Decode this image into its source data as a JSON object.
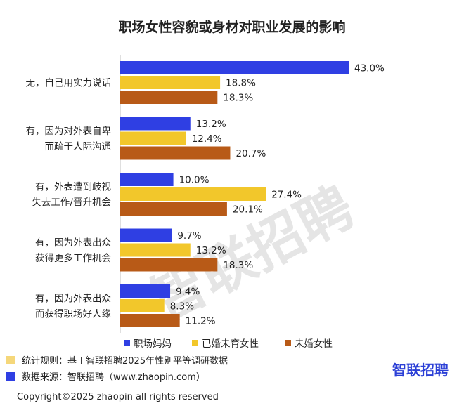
{
  "chart_data": {
    "type": "bar",
    "orientation": "horizontal",
    "title": "职场女性容貌或身材对职业发展的影响",
    "categories": [
      [
        "无，自己用实力说话"
      ],
      [
        "有，因为对外表自卑",
        "而疏于人际沟通"
      ],
      [
        "有，外表遭到歧视",
        "失去工作/晋升机会"
      ],
      [
        "有，因为外表出众",
        "获得更多工作机会"
      ],
      [
        "有，因为外表出众",
        "而获得职场好人缘"
      ]
    ],
    "series": [
      {
        "name": "职场妈妈",
        "values": [
          43.0,
          13.2,
          10.0,
          9.7,
          9.4
        ],
        "color": "#2f3fe3"
      },
      {
        "name": "已婚未育女性",
        "values": [
          18.8,
          12.4,
          27.4,
          13.2,
          8.3
        ],
        "color": "#f2c72b"
      },
      {
        "name": "未婚女性",
        "values": [
          18.3,
          20.7,
          20.1,
          18.3,
          11.2
        ],
        "color": "#b85a17"
      }
    ],
    "value_suffix": "%",
    "xlim": [
      0,
      50
    ],
    "grid": false,
    "legend_position": "bottom"
  },
  "footnotes": [
    {
      "text": "统计规则：基于智联招聘2025年性别平等调研数据",
      "marker_color": "#f5d77a"
    },
    {
      "text": "数据来源：智联招聘（www.zhaopin.com）",
      "marker_color": "#2f3fe3"
    }
  ],
  "logo_text": "智联招聘",
  "watermark_text": "智联招聘",
  "copyright": "Copyright©2025 zhaopin all rights reserved"
}
